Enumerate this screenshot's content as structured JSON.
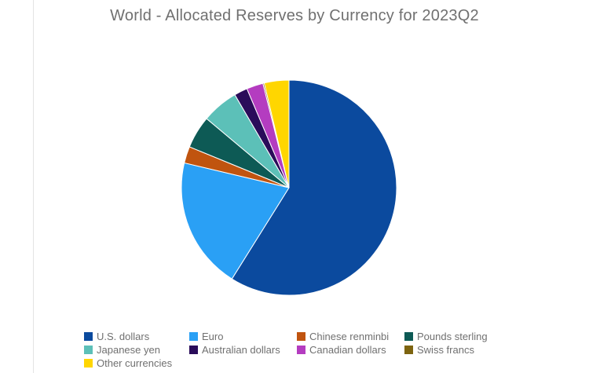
{
  "chart_data": {
    "type": "pie",
    "title": "World - Allocated Reserves by Currency for 2023Q2",
    "slices": [
      {
        "label": "U.S. dollars",
        "value": 58.9,
        "color": "#0b4a9e"
      },
      {
        "label": "Euro",
        "value": 19.8,
        "color": "#2aa0f5"
      },
      {
        "label": "Chinese renminbi",
        "value": 2.5,
        "color": "#c0540f"
      },
      {
        "label": "Pounds sterling",
        "value": 4.9,
        "color": "#0d5a55"
      },
      {
        "label": "Japanese yen",
        "value": 5.5,
        "color": "#5cc0b8"
      },
      {
        "label": "Australian dollars",
        "value": 2.0,
        "color": "#2a0c5a"
      },
      {
        "label": "Canadian dollars",
        "value": 2.5,
        "color": "#b43cc0"
      },
      {
        "label": "Swiss francs",
        "value": 0.2,
        "color": "#7d6410"
      },
      {
        "label": "Other currencies",
        "value": 3.7,
        "color": "#ffd600"
      }
    ],
    "legend_position": "bottom"
  }
}
